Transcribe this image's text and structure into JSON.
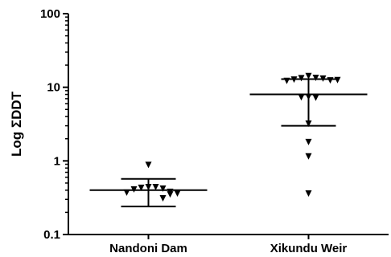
{
  "chart_data": {
    "type": "scatter",
    "title": "",
    "ylabel": "Log ΣDDT",
    "xlabel": "",
    "yscale": "log",
    "ylim": [
      0.1,
      100
    ],
    "yticks": [
      {
        "value": 0.1,
        "label": "0.1"
      },
      {
        "value": 1,
        "label": "1"
      },
      {
        "value": 10,
        "label": "10"
      },
      {
        "value": 100,
        "label": "100"
      }
    ],
    "categories": [
      "Nandoni Dam",
      "Xikundu Weir"
    ],
    "marker": "inverted-triangle",
    "grid": false,
    "color": "#000000",
    "groups": [
      {
        "category": "Nandoni Dam",
        "points": [
          0.88,
          0.44,
          0.44,
          0.43,
          0.42,
          0.41,
          0.38,
          0.37,
          0.36,
          0.35,
          0.31
        ],
        "mean": 0.4,
        "sd_upper": 0.57,
        "sd_lower": 0.24
      },
      {
        "category": "Xikundu Weir",
        "points": [
          14.2,
          13.4,
          13.3,
          13.1,
          12.7,
          12.4,
          12.2,
          12.5,
          7.4,
          7.2,
          7.3,
          3.2,
          1.8,
          1.15,
          0.36
        ],
        "mean": 8.0,
        "sd_upper": 12.9,
        "sd_lower": 3.0
      }
    ]
  }
}
